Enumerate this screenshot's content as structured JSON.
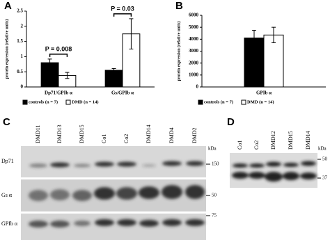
{
  "chart_data": [
    {
      "type": "bar",
      "panel": "A",
      "ylabel": "protein expression (relative units)",
      "categories": [
        "Dp71/GPIb α",
        "Gs/GPIb α"
      ],
      "series": [
        {
          "name": "controls (n = 7)",
          "color": "#000000",
          "values": [
            0.8,
            0.55
          ],
          "errors": [
            0.12,
            0.06
          ]
        },
        {
          "name": "DMD (n = 14)",
          "color": "#ffffff",
          "values": [
            0.38,
            1.75
          ],
          "errors": [
            0.1,
            0.5
          ]
        }
      ],
      "ylim": [
        0,
        2.5
      ],
      "yticks": [
        0,
        0.5,
        1,
        1.5,
        2,
        2.5
      ],
      "annotations": [
        "P = 0.008",
        "P = 0.03"
      ]
    },
    {
      "type": "bar",
      "panel": "B",
      "ylabel": "protein expression (relative units)",
      "categories": [
        "GPIb α"
      ],
      "series": [
        {
          "name": "controls (n = 7)",
          "color": "#000000",
          "values": [
            4100
          ],
          "errors": [
            650
          ]
        },
        {
          "name": "DMD (n = 14)",
          "color": "#ffffff",
          "values": [
            4350
          ],
          "errors": [
            650
          ]
        }
      ],
      "ylim": [
        0,
        6000
      ],
      "yticks": [
        0,
        1000,
        2000,
        3000,
        4000,
        5000,
        6000
      ]
    }
  ],
  "blots": [
    {
      "panel": "C",
      "lanes": [
        "DMD11",
        "DMD13",
        "DMD15",
        "Co1",
        "Co2",
        "DMD14",
        "DMD4",
        "DMD2"
      ],
      "rows": [
        "Dp71",
        "Gs α",
        "GPIb α"
      ],
      "unit": "kDa",
      "markers": [
        "150",
        "50",
        "75"
      ]
    },
    {
      "panel": "D",
      "lanes": [
        "Co1",
        "Co2",
        "DMD12",
        "DMD15",
        "DMD14"
      ],
      "unit": "kDa",
      "markers": [
        "50",
        "37"
      ]
    }
  ]
}
